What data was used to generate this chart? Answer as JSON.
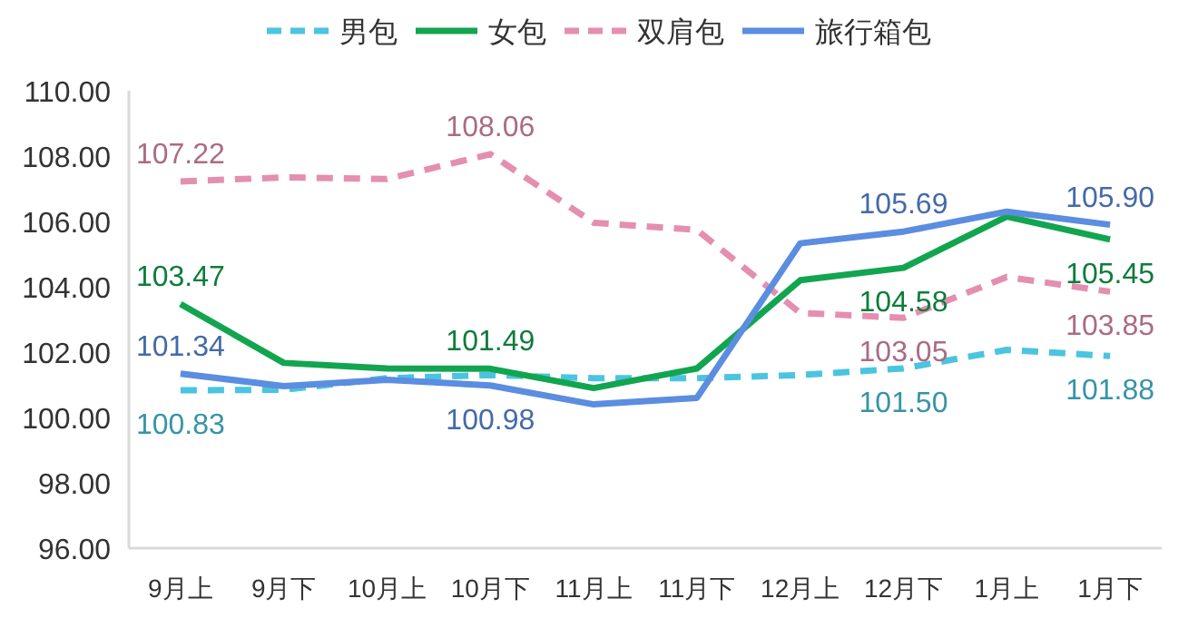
{
  "chart_data": {
    "type": "line",
    "categories": [
      "9月上",
      "9月下",
      "10月上",
      "10月下",
      "11月上",
      "11月下",
      "12月上",
      "12月下",
      "1月上",
      "1月下"
    ],
    "ylim": [
      96,
      110
    ],
    "yticks": [
      {
        "value": 96,
        "label": "96.00"
      },
      {
        "value": 98,
        "label": "98.00"
      },
      {
        "value": 100,
        "label": "100.00"
      },
      {
        "value": 102,
        "label": "102.00"
      },
      {
        "value": 104,
        "label": "104.00"
      },
      {
        "value": 106,
        "label": "106.00"
      },
      {
        "value": 108,
        "label": "108.00"
      },
      {
        "value": 110,
        "label": "110.00"
      }
    ],
    "grid": false,
    "legend": "top",
    "series": [
      {
        "name": "男包",
        "color": "#4bc4e0",
        "line_style": "dashed",
        "values": [
          100.83,
          100.85,
          101.2,
          101.3,
          101.2,
          101.2,
          101.3,
          101.5,
          102.07,
          101.88
        ],
        "value_labels": [
          "100.83",
          null,
          null,
          null,
          null,
          null,
          null,
          "101.50",
          null,
          "101.88"
        ]
      },
      {
        "name": "女包",
        "color": "#12a550",
        "line_style": "solid",
        "values": [
          103.47,
          101.67,
          101.5,
          101.49,
          100.9,
          101.5,
          104.2,
          104.58,
          106.15,
          105.45
        ],
        "value_labels": [
          "103.47",
          null,
          null,
          "101.49",
          null,
          null,
          null,
          "104.58",
          null,
          "105.45"
        ]
      },
      {
        "name": "双肩包",
        "color": "#e48fb0",
        "line_style": "dashed",
        "values": [
          107.22,
          107.35,
          107.3,
          108.06,
          105.96,
          105.74,
          103.2,
          103.05,
          104.3,
          103.85
        ],
        "value_labels": [
          "107.22",
          null,
          null,
          "108.06",
          null,
          null,
          null,
          "103.05",
          null,
          "103.85"
        ]
      },
      {
        "name": "旅行箱包",
        "color": "#5b8de0",
        "line_style": "solid",
        "values": [
          101.34,
          100.96,
          101.15,
          100.98,
          100.4,
          100.6,
          105.33,
          105.69,
          106.3,
          105.9
        ],
        "value_labels": [
          "101.34",
          null,
          null,
          "100.98",
          null,
          null,
          null,
          "105.69",
          null,
          "105.90"
        ]
      }
    ]
  }
}
